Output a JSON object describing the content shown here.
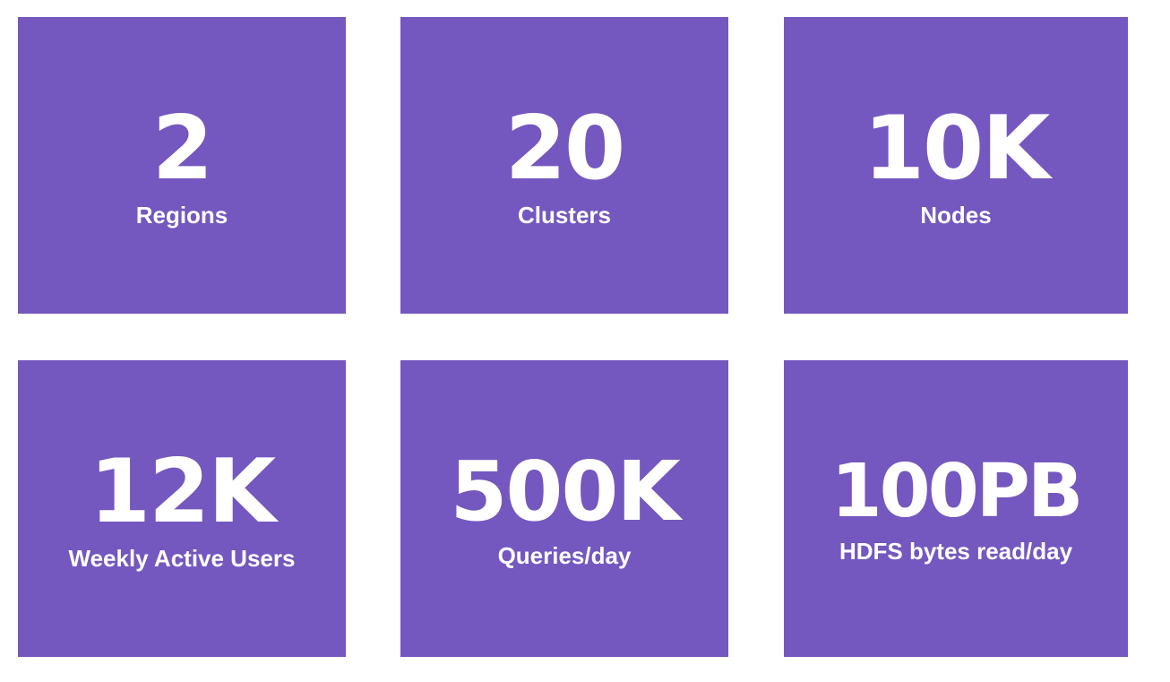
{
  "colors": {
    "tile_background": "#7457bf",
    "text": "#ffffff",
    "page_background": "#ffffff"
  },
  "stats": [
    {
      "value": "2",
      "label": "Regions"
    },
    {
      "value": "20",
      "label": "Clusters"
    },
    {
      "value": "10K",
      "label": "Nodes"
    },
    {
      "value": "12K",
      "label": "Weekly Active Users"
    },
    {
      "value": "500K",
      "label": "Queries/day"
    },
    {
      "value": "100PB",
      "label": "HDFS bytes read/day"
    }
  ]
}
